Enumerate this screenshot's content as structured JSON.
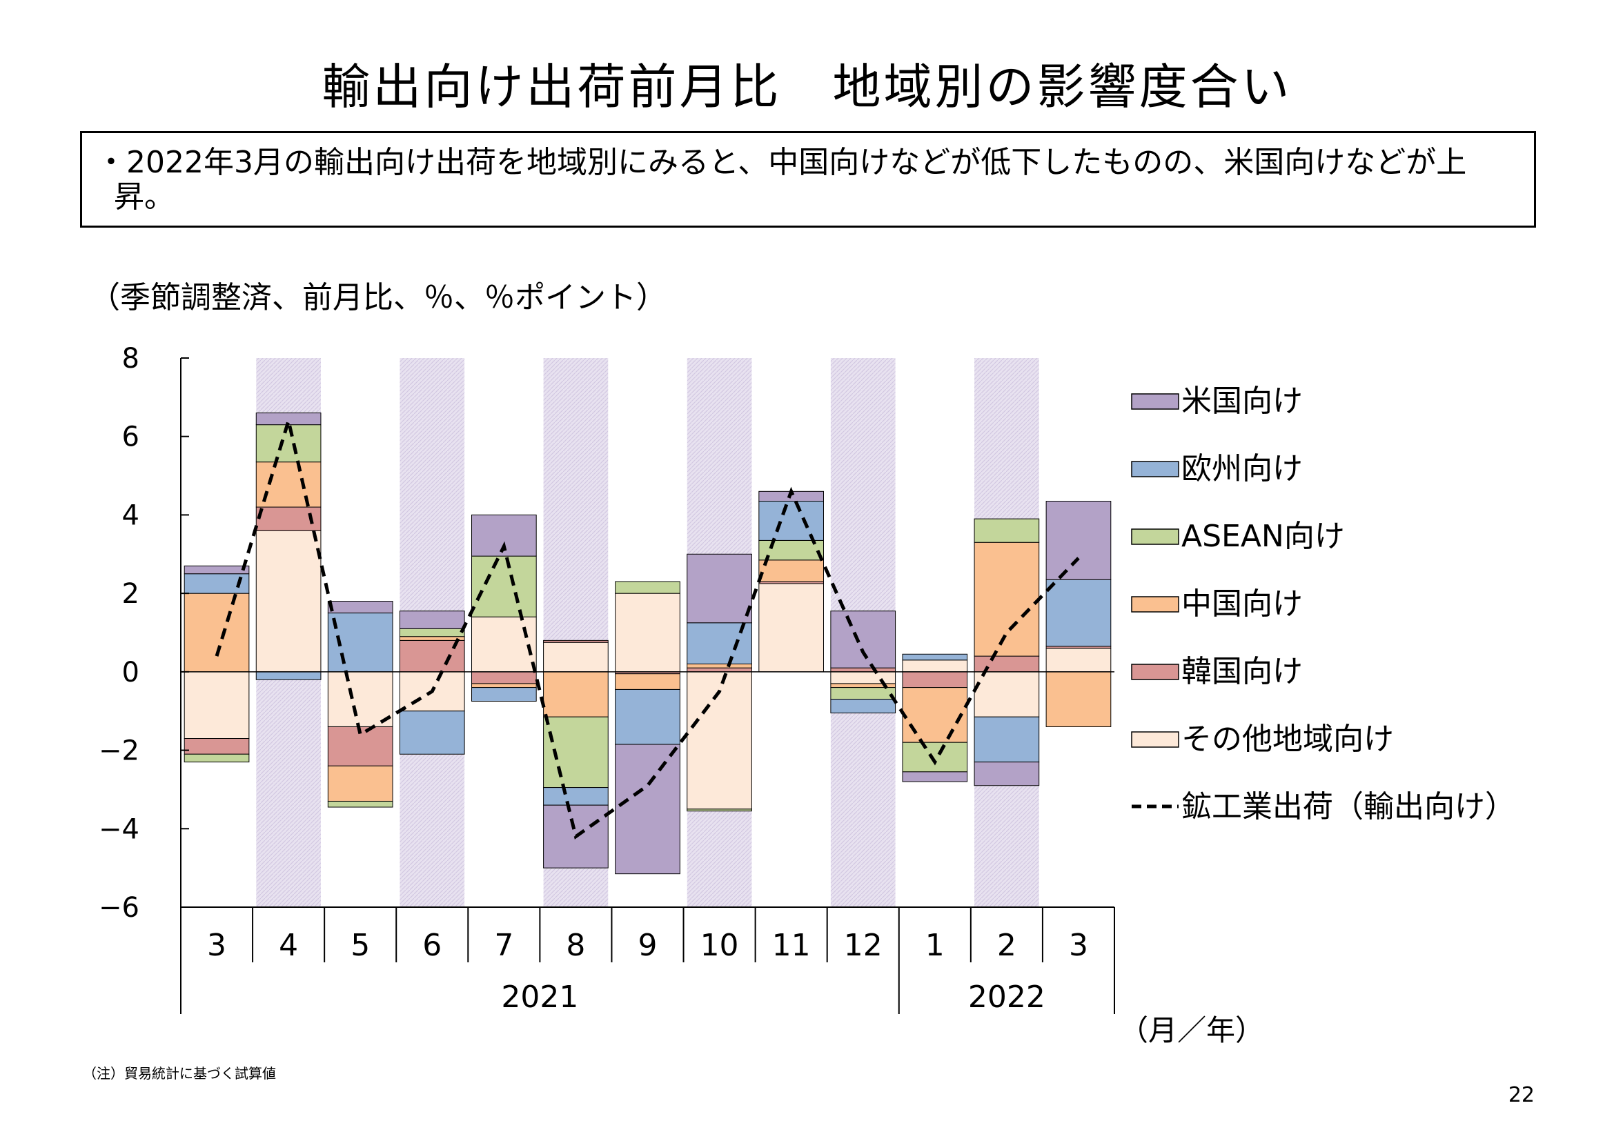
{
  "title": "輸出向け出荷前月比　地域別の影響度合い",
  "summary": "・2022年3月の輸出向け出荷を地域別にみると、中国向けなどが低下したものの、米国向けなどが上昇。",
  "unit_label": "（季節調整済、前月比、％、％ポイント）",
  "x_unit_label": "（月／年）",
  "note": "（注）貿易統計に基づく試算値",
  "page_number": "22",
  "colors": {
    "us": "#b3a2c7",
    "eu": "#95b3d7",
    "asean": "#c3d69b",
    "china": "#fac090",
    "korea": "#d99694",
    "other": "#fde9d9",
    "shade": "#e8e2f0"
  },
  "chart_data": {
    "type": "bar",
    "stacked": true,
    "categories": [
      "3",
      "4",
      "5",
      "6",
      "7",
      "8",
      "9",
      "10",
      "11",
      "12",
      "1",
      "2",
      "3"
    ],
    "year_groups": [
      {
        "label": "2021",
        "start": 0,
        "end": 9
      },
      {
        "label": "2022",
        "start": 10,
        "end": 12
      }
    ],
    "shaded_categories": [
      1,
      3,
      5,
      7,
      9,
      11
    ],
    "ylim": [
      -6,
      8
    ],
    "yticks": [
      -6,
      -4,
      -2,
      0,
      2,
      4,
      6,
      8
    ],
    "series": [
      {
        "name": "その他地域向け",
        "key": "other",
        "values": [
          -1.7,
          3.6,
          -1.4,
          -1.0,
          1.4,
          0.75,
          2.0,
          -3.5,
          2.25,
          -0.3,
          0.3,
          -1.15,
          0.6
        ]
      },
      {
        "name": "韓国向け",
        "key": "korea",
        "values": [
          -0.4,
          0.6,
          -1.0,
          0.8,
          -0.3,
          0.05,
          -0.05,
          0.1,
          0.05,
          0.1,
          -0.4,
          0.4,
          0.05
        ]
      },
      {
        "name": "中国向け",
        "key": "china",
        "values": [
          2.0,
          1.15,
          -0.9,
          0.1,
          -0.1,
          -1.15,
          -0.4,
          0.1,
          0.55,
          -0.1,
          -1.4,
          2.9,
          -1.4
        ]
      },
      {
        "name": "ASEAN向け",
        "key": "asean",
        "values": [
          -0.2,
          0.95,
          -0.15,
          0.2,
          1.55,
          -1.8,
          0.3,
          -0.05,
          0.5,
          -0.3,
          -0.75,
          0.6,
          0.0
        ]
      },
      {
        "name": "欧州向け",
        "key": "eu",
        "values": [
          0.5,
          -0.2,
          1.5,
          -1.1,
          -0.35,
          -0.45,
          -1.4,
          1.05,
          1.0,
          -0.35,
          0.15,
          -1.15,
          1.7
        ]
      },
      {
        "name": "米国向け",
        "key": "us",
        "values": [
          0.2,
          0.3,
          0.3,
          0.45,
          1.05,
          -1.6,
          -3.3,
          1.75,
          0.25,
          1.45,
          -0.25,
          -0.6,
          2.0
        ]
      }
    ],
    "line": {
      "name": "鉱工業出荷（輸出向け）",
      "values": [
        0.4,
        6.4,
        -1.6,
        -0.5,
        3.2,
        -4.2,
        -2.9,
        -0.5,
        4.6,
        0.5,
        -2.3,
        1.0,
        2.9
      ]
    },
    "legend": {
      "position": "right"
    }
  }
}
